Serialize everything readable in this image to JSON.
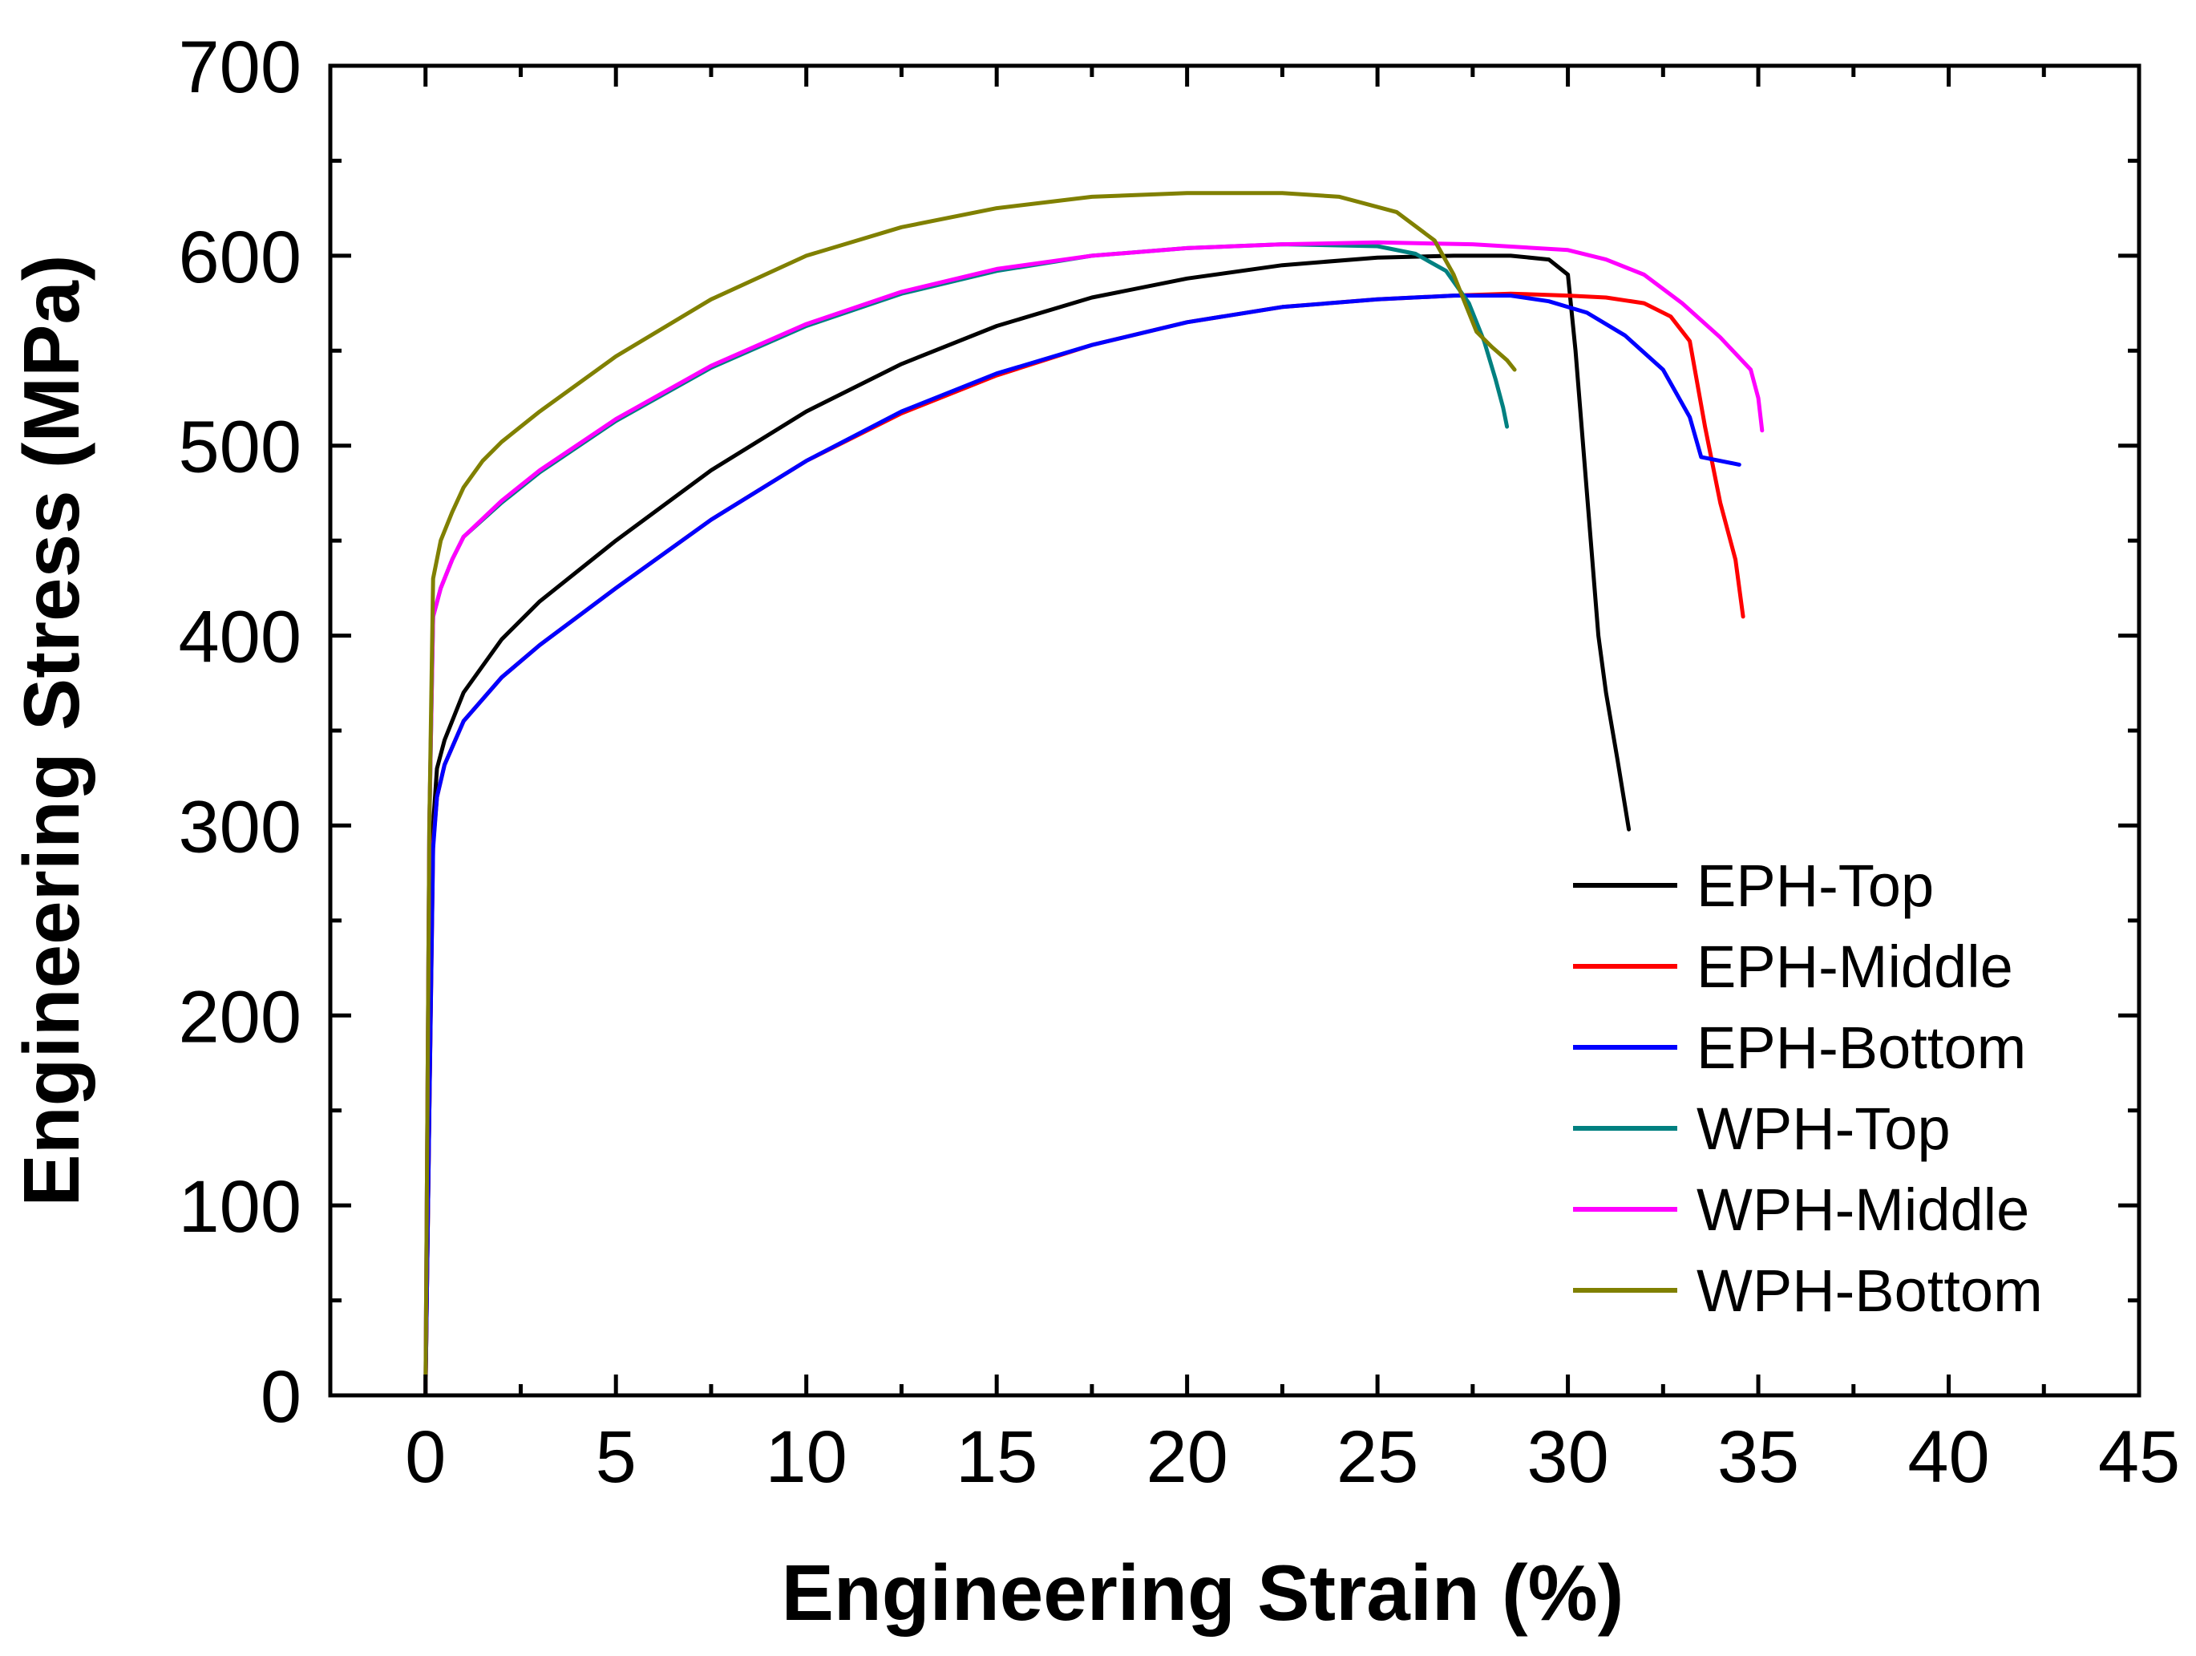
{
  "chart_data": {
    "type": "line",
    "title": "",
    "xlabel": "Engineering Strain (%)",
    "ylabel": "Engineering Stress (MPa)",
    "xlim": [
      -2.5,
      45
    ],
    "ylim": [
      0,
      700
    ],
    "xticks": [
      0,
      5,
      10,
      15,
      20,
      25,
      30,
      35,
      40,
      45
    ],
    "yticks": [
      0,
      100,
      200,
      300,
      400,
      500,
      600,
      700
    ],
    "xtick_labels": [
      "0",
      "5",
      "10",
      "15",
      "20",
      "25",
      "30",
      "35",
      "40",
      "45"
    ],
    "ytick_labels": [
      "0",
      "100",
      "200",
      "300",
      "400",
      "500",
      "600",
      "700"
    ],
    "grid": false,
    "legend_position": "bottom-right",
    "series": [
      {
        "name": "EPH-Top",
        "color": "#000000",
        "x": [
          0,
          0.1,
          0.2,
          0.3,
          0.5,
          1,
          2,
          3,
          5,
          7.5,
          10,
          12.5,
          15,
          17.5,
          20,
          22.5,
          25,
          27,
          28.5,
          29.5,
          30,
          30.2,
          30.4,
          30.6,
          30.8,
          31.0,
          31.3,
          31.6
        ],
        "y": [
          0,
          150,
          300,
          330,
          345,
          370,
          398,
          418,
          450,
          487,
          518,
          543,
          563,
          578,
          588,
          595,
          599,
          600,
          600,
          598,
          590,
          550,
          500,
          450,
          400,
          370,
          335,
          298
        ]
      },
      {
        "name": "EPH-Middle",
        "color": "#ff0000",
        "x": [
          0,
          0.1,
          0.2,
          0.3,
          0.5,
          1,
          2,
          3,
          5,
          7.5,
          10,
          12.5,
          15,
          17.5,
          20,
          22.5,
          25,
          27,
          28.5,
          30,
          31,
          32,
          32.7,
          33.2,
          33.6,
          34.0,
          34.4,
          34.6
        ],
        "y": [
          0,
          150,
          290,
          315,
          332,
          355,
          378,
          395,
          425,
          461,
          492,
          517,
          537,
          553,
          565,
          573,
          577,
          579,
          580,
          579,
          578,
          575,
          568,
          555,
          510,
          470,
          440,
          410
        ]
      },
      {
        "name": "EPH-Bottom",
        "color": "#0000ff",
        "x": [
          0,
          0.1,
          0.2,
          0.3,
          0.5,
          1,
          2,
          3,
          5,
          7.5,
          10,
          12.5,
          15,
          17.5,
          20,
          22.5,
          25,
          27,
          28.5,
          29.5,
          30.5,
          31.5,
          32.5,
          33.2,
          33.5,
          34.0,
          34.5
        ],
        "y": [
          0,
          150,
          288,
          315,
          332,
          355,
          378,
          395,
          425,
          461,
          492,
          518,
          538,
          553,
          565,
          573,
          577,
          579,
          579,
          576,
          570,
          558,
          540,
          515,
          494,
          492,
          490
        ]
      },
      {
        "name": "WPH-Top",
        "color": "#008080",
        "x": [
          0,
          0.05,
          0.1,
          0.2,
          0.4,
          0.7,
          1,
          2,
          3,
          5,
          7.5,
          10,
          12.5,
          15,
          17.5,
          20,
          22.5,
          25,
          26,
          26.8,
          27.4,
          27.8,
          28.1,
          28.3,
          28.4
        ],
        "y": [
          0,
          150,
          300,
          410,
          425,
          440,
          452,
          470,
          486,
          513,
          541,
          563,
          580,
          592,
          600,
          604,
          606,
          605,
          601,
          592,
          575,
          555,
          535,
          520,
          510
        ]
      },
      {
        "name": "WPH-Middle",
        "color": "#ff00ff",
        "x": [
          0,
          0.05,
          0.1,
          0.2,
          0.4,
          0.7,
          1,
          2,
          3,
          5,
          7.5,
          10,
          12.5,
          15,
          17.5,
          20,
          22.5,
          25,
          27.5,
          30,
          31,
          32,
          33,
          34,
          34.8,
          35.0,
          35.1
        ],
        "y": [
          0,
          150,
          300,
          410,
          425,
          440,
          452,
          471,
          487,
          514,
          542,
          564,
          581,
          593,
          600,
          604,
          606,
          607,
          606,
          603,
          598,
          590,
          575,
          557,
          540,
          525,
          508
        ]
      },
      {
        "name": "WPH-Bottom",
        "color": "#808000",
        "x": [
          0,
          0.05,
          0.1,
          0.2,
          0.4,
          0.7,
          1,
          1.5,
          2,
          3,
          5,
          7.5,
          10,
          12.5,
          15,
          17.5,
          20,
          22.5,
          24,
          25.5,
          26.5,
          27,
          27.3,
          27.6,
          28.0,
          28.4,
          28.6
        ],
        "y": [
          0,
          150,
          300,
          430,
          450,
          465,
          478,
          492,
          502,
          518,
          547,
          577,
          600,
          615,
          625,
          631,
          633,
          633,
          631,
          623,
          608,
          590,
          575,
          560,
          552,
          545,
          540
        ]
      }
    ]
  }
}
